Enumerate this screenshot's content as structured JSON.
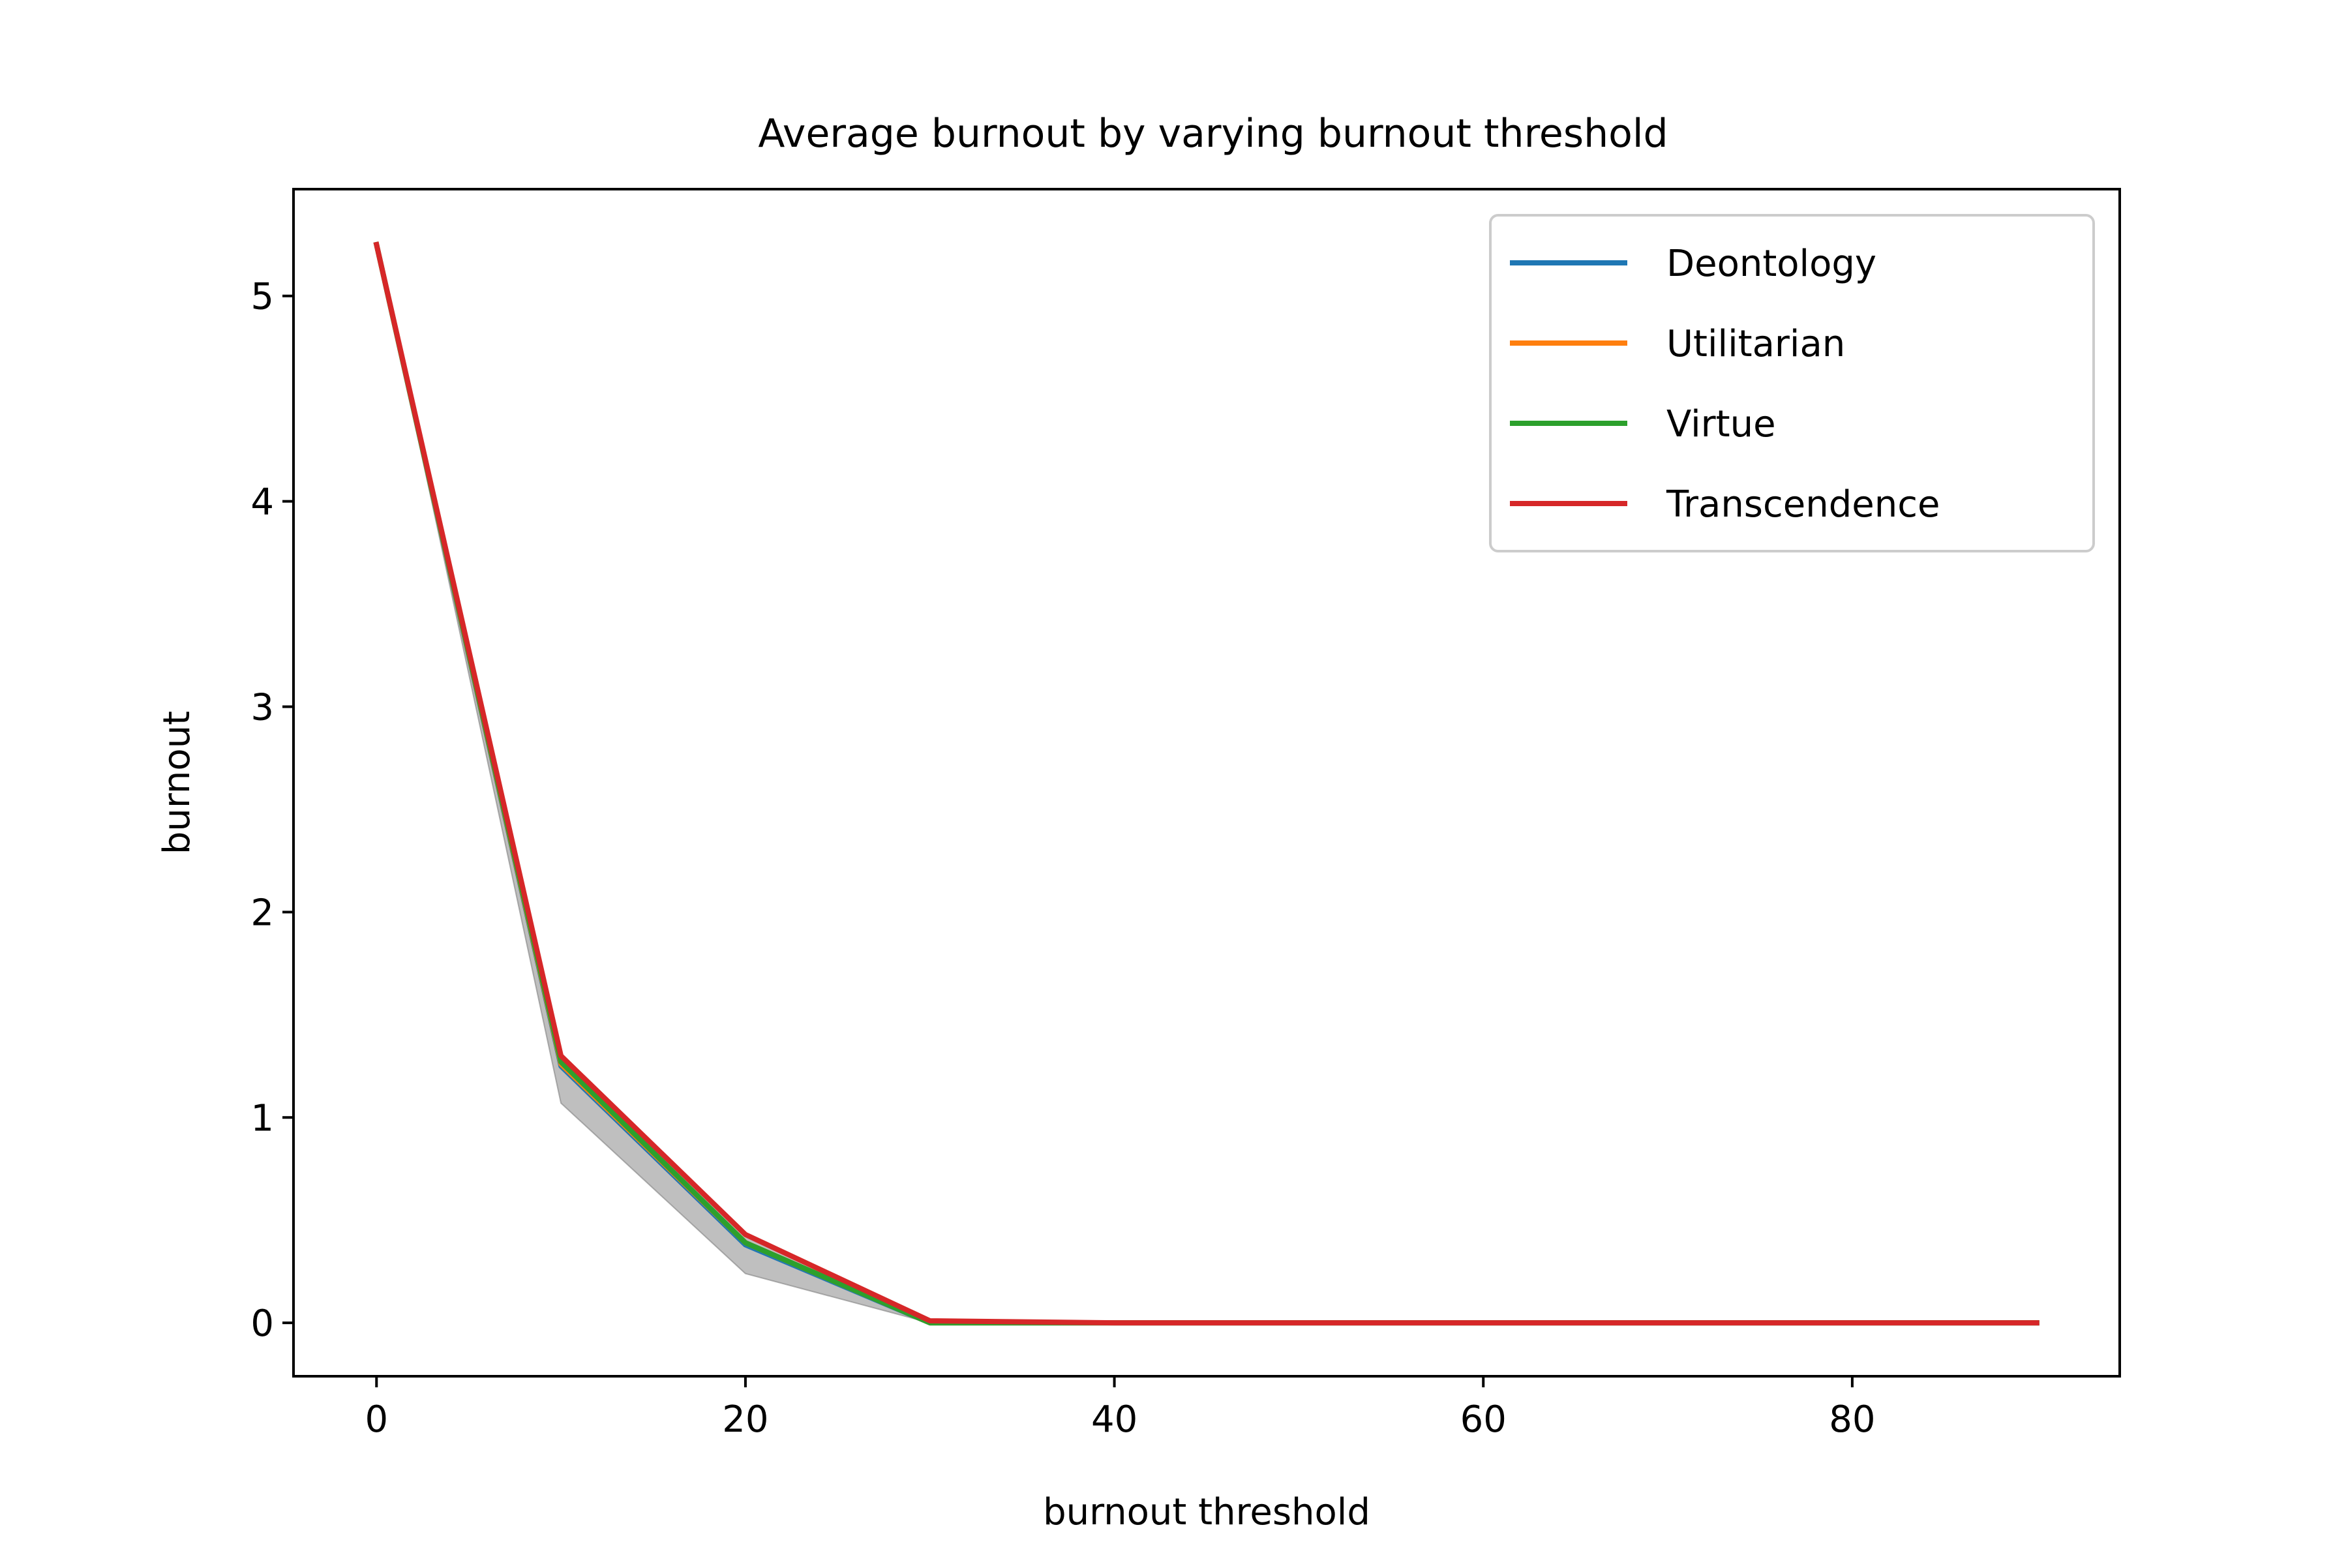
{
  "chart_data": {
    "type": "line",
    "title": "Average burnout by varying burnout threshold",
    "xlabel": "burnout threshold",
    "ylabel": "burnout",
    "xlim": [
      -4.5,
      94.5
    ],
    "ylim": [
      -0.26,
      5.52
    ],
    "xticks": [
      0,
      20,
      40,
      60,
      80
    ],
    "yticks": [
      0,
      1,
      2,
      3,
      4,
      5
    ],
    "x": [
      0,
      10,
      20,
      30,
      40,
      50,
      60,
      70,
      80,
      90
    ],
    "series": [
      {
        "name": "Deontology",
        "color": "#1f77b4",
        "values": [
          5.25,
          1.25,
          0.38,
          0.0,
          0.0,
          0.0,
          0.0,
          0.0,
          0.0,
          0.0
        ]
      },
      {
        "name": "Utilitarian",
        "color": "#ff7f0e",
        "values": [
          5.25,
          1.26,
          0.39,
          0.0,
          0.0,
          0.0,
          0.0,
          0.0,
          0.0,
          0.0
        ]
      },
      {
        "name": "Virtue",
        "color": "#2ca02c",
        "values": [
          5.25,
          1.27,
          0.39,
          0.0,
          0.0,
          0.0,
          0.0,
          0.0,
          0.0,
          0.0
        ]
      },
      {
        "name": "Transcendence",
        "color": "#d62728",
        "values": [
          5.25,
          1.3,
          0.43,
          0.01,
          0.0,
          0.0,
          0.0,
          0.0,
          0.0,
          0.0
        ]
      }
    ],
    "band": {
      "color": "#808080",
      "lower": [
        5.25,
        1.07,
        0.24,
        0.0,
        0.0,
        0.0,
        0.0,
        0.0,
        0.0,
        0.0
      ],
      "upper": [
        5.25,
        1.3,
        0.43,
        0.01,
        0.0,
        0.0,
        0.0,
        0.0,
        0.0,
        0.0
      ]
    },
    "legend": "upper right",
    "grid": false
  }
}
